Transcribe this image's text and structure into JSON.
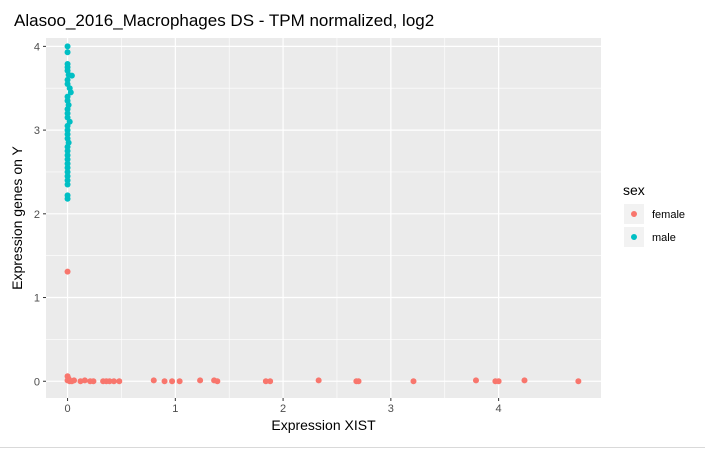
{
  "chart_data": {
    "type": "scatter",
    "title": "Alasoo_2016_Macrophages DS - TPM normalized, log2",
    "xlabel": "Expression XIST",
    "ylabel": "Expression genes on Y",
    "xlim": [
      -0.2,
      4.95
    ],
    "ylim": [
      -0.2,
      4.1
    ],
    "xticks": [
      0,
      1,
      2,
      3,
      4
    ],
    "yticks": [
      0,
      1,
      2,
      3,
      4
    ],
    "grid": true,
    "legend": {
      "title": "sex",
      "position": "right",
      "entries": [
        {
          "label": "female",
          "color": "#F8766D"
        },
        {
          "label": "male",
          "color": "#00BFC4"
        }
      ]
    },
    "series": [
      {
        "name": "female",
        "color": "#F8766D",
        "points": [
          [
            0.0,
            1.31
          ],
          [
            0.0,
            0.06
          ],
          [
            0.01,
            0.03
          ],
          [
            0.0,
            0.01
          ],
          [
            0.02,
            0.0
          ],
          [
            0.04,
            0.0
          ],
          [
            0.06,
            0.01
          ],
          [
            0.12,
            0.0
          ],
          [
            0.16,
            0.01
          ],
          [
            0.21,
            0.0
          ],
          [
            0.24,
            0.0
          ],
          [
            0.33,
            0.0
          ],
          [
            0.36,
            0.0
          ],
          [
            0.39,
            0.0
          ],
          [
            0.43,
            0.0
          ],
          [
            0.48,
            0.0
          ],
          [
            0.8,
            0.01
          ],
          [
            0.9,
            0.0
          ],
          [
            0.97,
            0.0
          ],
          [
            1.04,
            0.0
          ],
          [
            1.23,
            0.01
          ],
          [
            1.36,
            0.01
          ],
          [
            1.39,
            0.0
          ],
          [
            1.84,
            0.0
          ],
          [
            1.88,
            0.0
          ],
          [
            2.33,
            0.01
          ],
          [
            2.68,
            0.0
          ],
          [
            2.7,
            0.0
          ],
          [
            3.21,
            0.0
          ],
          [
            3.79,
            0.01
          ],
          [
            3.97,
            0.0
          ],
          [
            4.0,
            0.0
          ],
          [
            4.24,
            0.01
          ],
          [
            4.74,
            0.0
          ]
        ]
      },
      {
        "name": "male",
        "color": "#00BFC4",
        "points": [
          [
            0.0,
            4.0
          ],
          [
            0.0,
            3.93
          ],
          [
            0.0,
            3.79
          ],
          [
            0.0,
            3.75
          ],
          [
            0.0,
            3.71
          ],
          [
            0.01,
            3.66
          ],
          [
            0.04,
            3.65
          ],
          [
            0.0,
            3.6
          ],
          [
            0.0,
            3.55
          ],
          [
            0.02,
            3.5
          ],
          [
            0.03,
            3.45
          ],
          [
            0.0,
            3.4
          ],
          [
            0.0,
            3.35
          ],
          [
            0.01,
            3.3
          ],
          [
            0.0,
            3.25
          ],
          [
            0.0,
            3.2
          ],
          [
            0.0,
            3.15
          ],
          [
            0.02,
            3.1
          ],
          [
            0.0,
            3.05
          ],
          [
            0.0,
            3.0
          ],
          [
            0.0,
            2.95
          ],
          [
            0.0,
            2.9
          ],
          [
            0.01,
            2.85
          ],
          [
            0.0,
            2.8
          ],
          [
            0.0,
            2.75
          ],
          [
            0.0,
            2.7
          ],
          [
            0.0,
            2.65
          ],
          [
            0.0,
            2.6
          ],
          [
            0.0,
            2.55
          ],
          [
            0.0,
            2.5
          ],
          [
            0.0,
            2.45
          ],
          [
            0.0,
            2.4
          ],
          [
            0.0,
            2.35
          ],
          [
            0.0,
            2.22
          ],
          [
            0.0,
            2.18
          ]
        ]
      }
    ]
  }
}
